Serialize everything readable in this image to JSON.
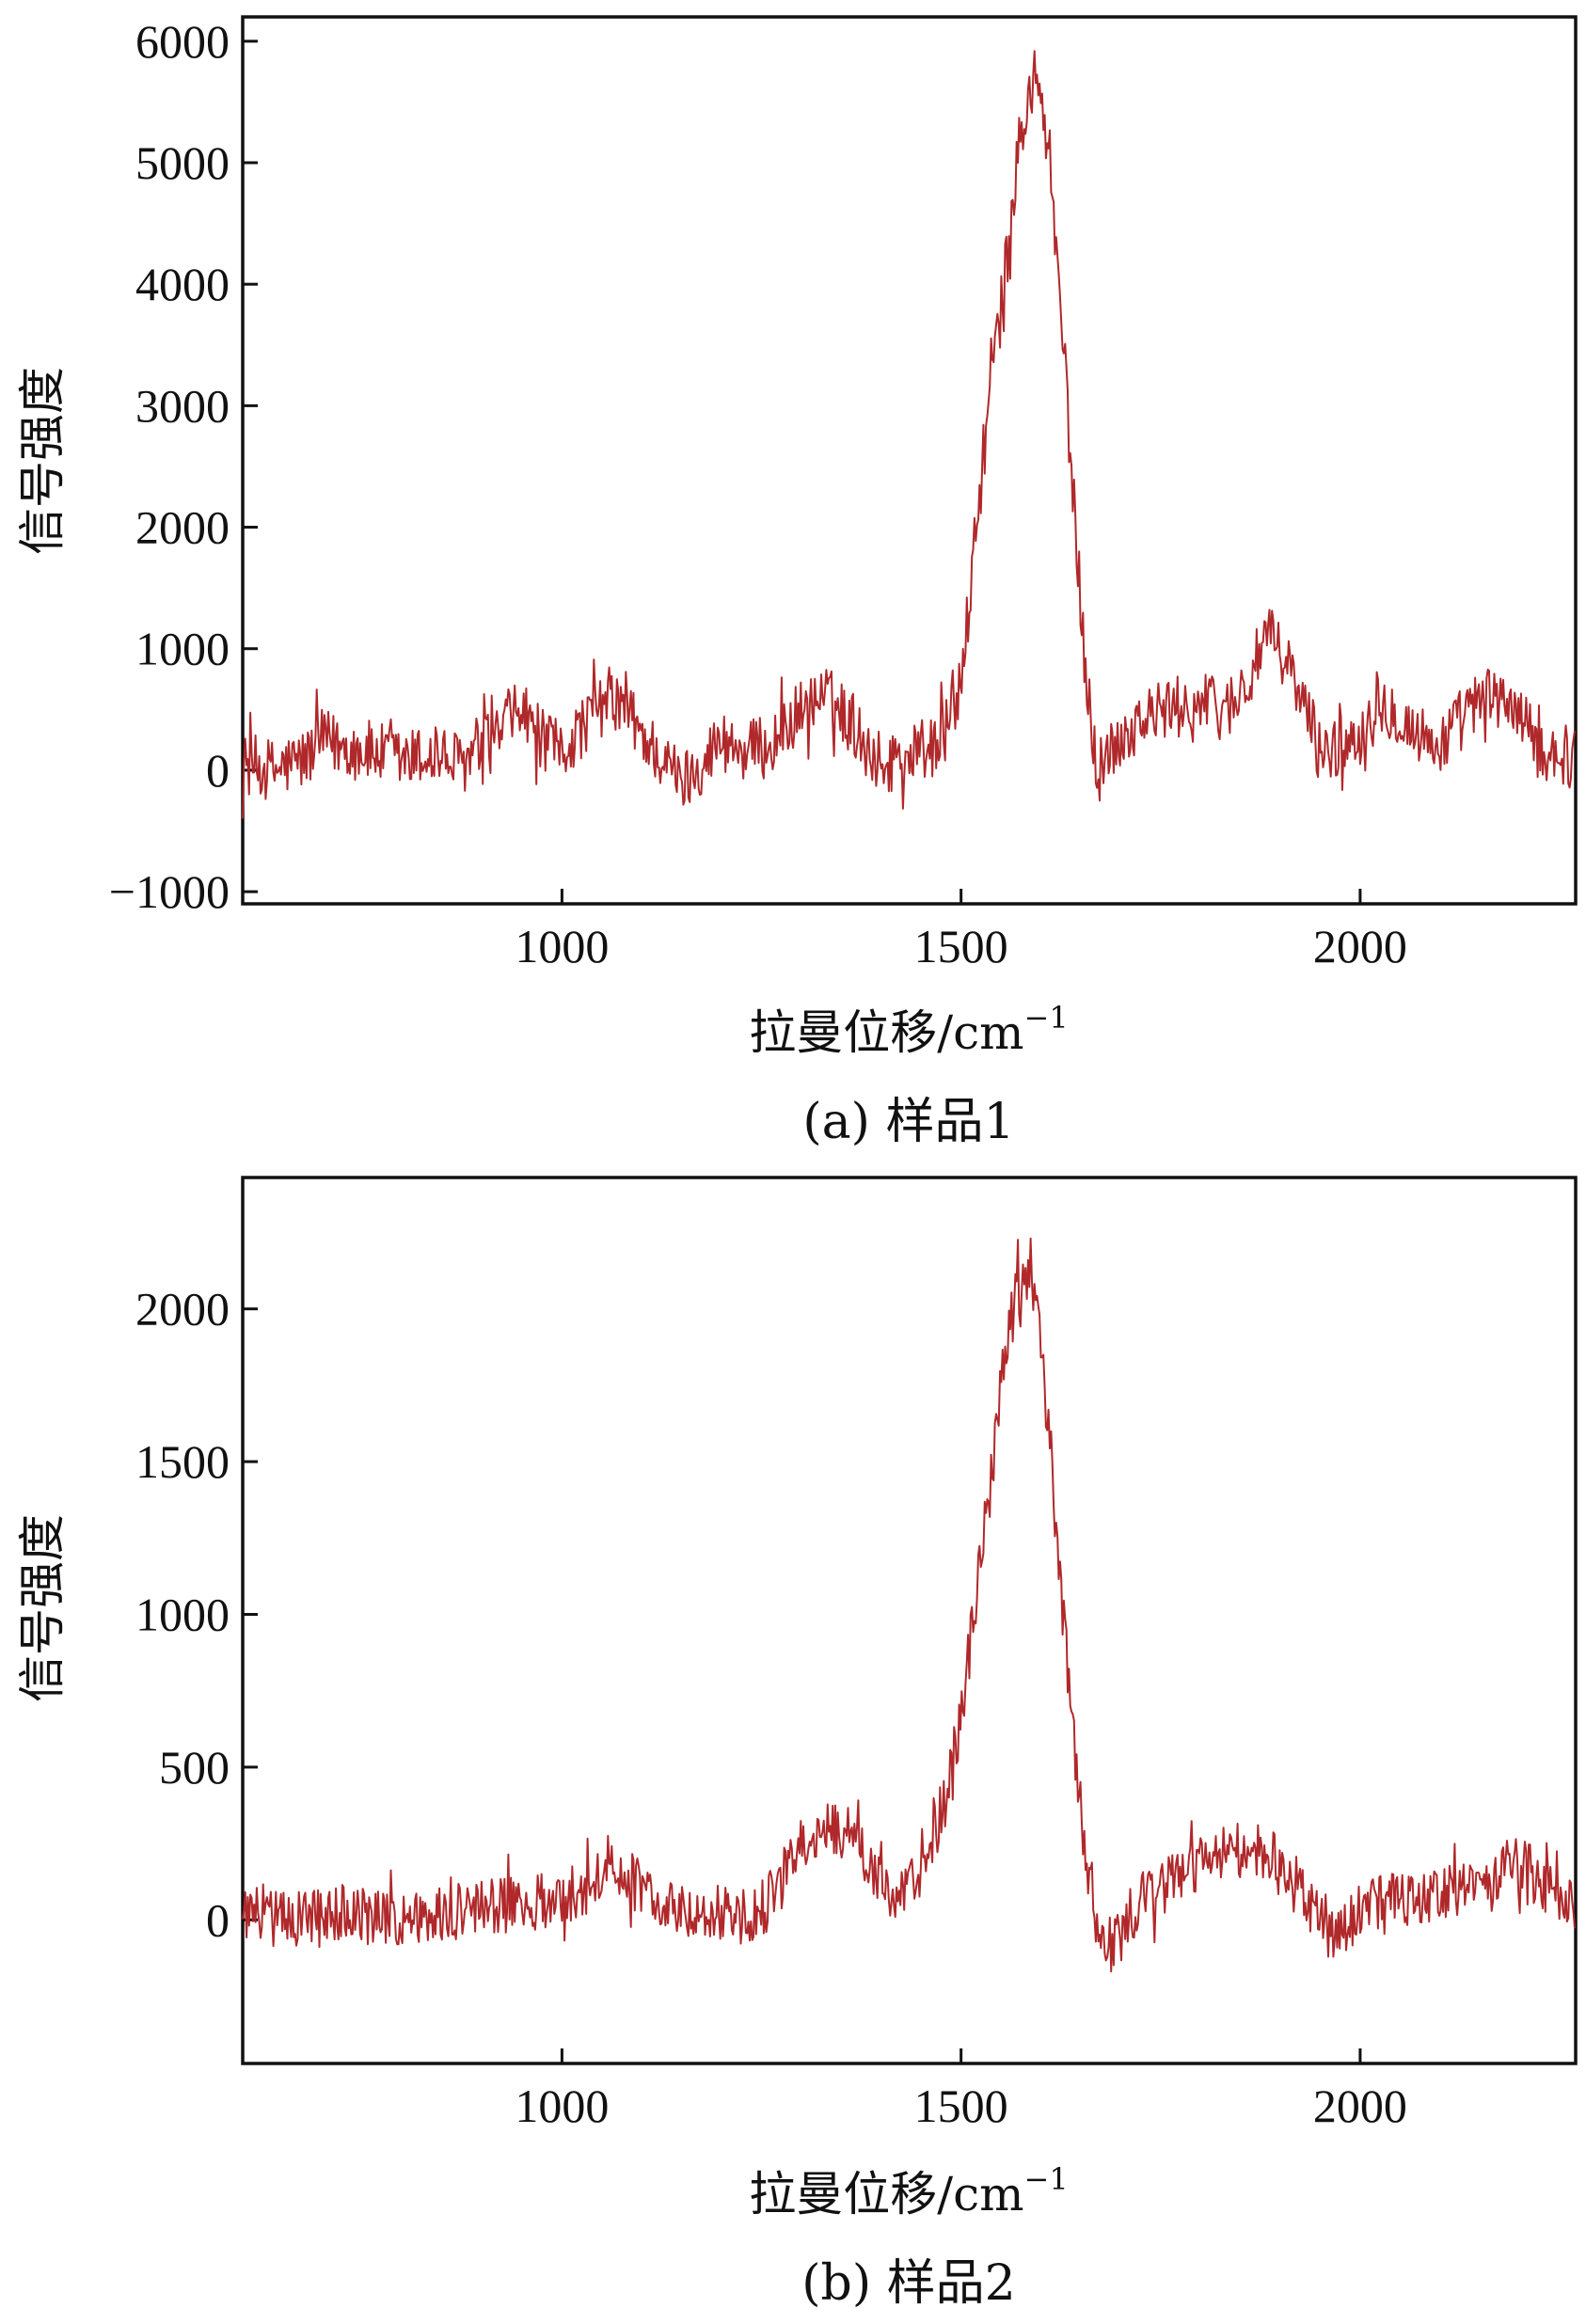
{
  "chart_data": [
    {
      "type": "line",
      "panel": "a",
      "caption": "(a) 样品1",
      "xlabel": "拉曼位移/cm",
      "xlabel_sup": "−1",
      "ylabel": "信号强度",
      "xlim": [
        600,
        2270
      ],
      "ylim": [
        -1100,
        6200
      ],
      "xticks": [
        1000,
        1500,
        2000
      ],
      "xtick_labels": [
        "1000",
        "1500",
        "2000"
      ],
      "yticks": [
        -1000,
        0,
        1000,
        2000,
        3000,
        4000,
        5000,
        6000
      ],
      "ytick_labels": [
        "−1000",
        "0",
        "1000",
        "2000",
        "3000",
        "4000",
        "5000",
        "6000"
      ],
      "series": [
        {
          "name": "样品1",
          "color": "#b0282a",
          "x": [
            600,
            640,
            680,
            700,
            720,
            760,
            800,
            840,
            870,
            890,
            920,
            950,
            980,
            1000,
            1030,
            1060,
            1080,
            1100,
            1130,
            1150,
            1180,
            1200,
            1230,
            1260,
            1300,
            1330,
            1360,
            1380,
            1400,
            1420,
            1450,
            1480,
            1500,
            1515,
            1530,
            1545,
            1560,
            1575,
            1590,
            1600,
            1610,
            1625,
            1640,
            1655,
            1670,
            1690,
            1720,
            1760,
            1800,
            1830,
            1860,
            1880,
            1900,
            1920,
            1950,
            1980,
            2000,
            2020,
            2040,
            2070,
            2100,
            2130,
            2160,
            2190,
            2220,
            2240,
            2270
          ],
          "y": [
            50,
            0,
            100,
            250,
            200,
            150,
            80,
            120,
            60,
            100,
            300,
            500,
            200,
            150,
            400,
            600,
            500,
            300,
            50,
            -100,
            100,
            250,
            150,
            200,
            500,
            600,
            450,
            200,
            50,
            100,
            150,
            300,
            700,
            1700,
            2700,
            3600,
            4300,
            5300,
            5600,
            5600,
            5000,
            3800,
            2300,
            900,
            0,
            200,
            400,
            500,
            550,
            500,
            700,
            1100,
            1000,
            700,
            150,
            200,
            300,
            600,
            500,
            300,
            200,
            450,
            600,
            550,
            200,
            150,
            100
          ],
          "noise_amplitude": 260
        }
      ]
    },
    {
      "type": "line",
      "panel": "b",
      "caption": "(b) 样品2",
      "xlabel": "拉曼位移/cm",
      "xlabel_sup": "−1",
      "ylabel": "信号强度",
      "xlim": [
        600,
        2270
      ],
      "ylim": [
        -470,
        2430
      ],
      "xticks": [
        1000,
        1500,
        2000
      ],
      "xtick_labels": [
        "1000",
        "1500",
        "2000"
      ],
      "yticks": [
        0,
        500,
        1000,
        1500,
        2000
      ],
      "ytick_labels": [
        "0",
        "500",
        "1000",
        "1500",
        "2000"
      ],
      "series": [
        {
          "name": "样品2",
          "color": "#b0282a",
          "x": [
            600,
            650,
            700,
            750,
            800,
            850,
            900,
            950,
            1000,
            1030,
            1060,
            1090,
            1120,
            1150,
            1180,
            1210,
            1240,
            1270,
            1300,
            1330,
            1360,
            1380,
            1400,
            1420,
            1440,
            1460,
            1480,
            1500,
            1520,
            1540,
            1555,
            1570,
            1580,
            1590,
            1600,
            1610,
            1625,
            1640,
            1655,
            1670,
            1690,
            1720,
            1760,
            1800,
            1840,
            1870,
            1890,
            1910,
            1940,
            1970,
            2000,
            2040,
            2080,
            2120,
            2160,
            2200,
            2240,
            2270
          ],
          "y": [
            20,
            0,
            30,
            10,
            0,
            20,
            40,
            60,
            60,
            120,
            160,
            120,
            80,
            30,
            40,
            20,
            0,
            100,
            250,
            320,
            270,
            200,
            100,
            50,
            120,
            220,
            400,
            650,
            1100,
            1500,
            1850,
            2050,
            2120,
            2080,
            1900,
            1600,
            1100,
            600,
            250,
            0,
            -100,
            50,
            120,
            180,
            220,
            230,
            200,
            130,
            50,
            -50,
            30,
            60,
            80,
            100,
            150,
            180,
            100,
            50
          ],
          "noise_amplitude": 95
        }
      ]
    }
  ]
}
